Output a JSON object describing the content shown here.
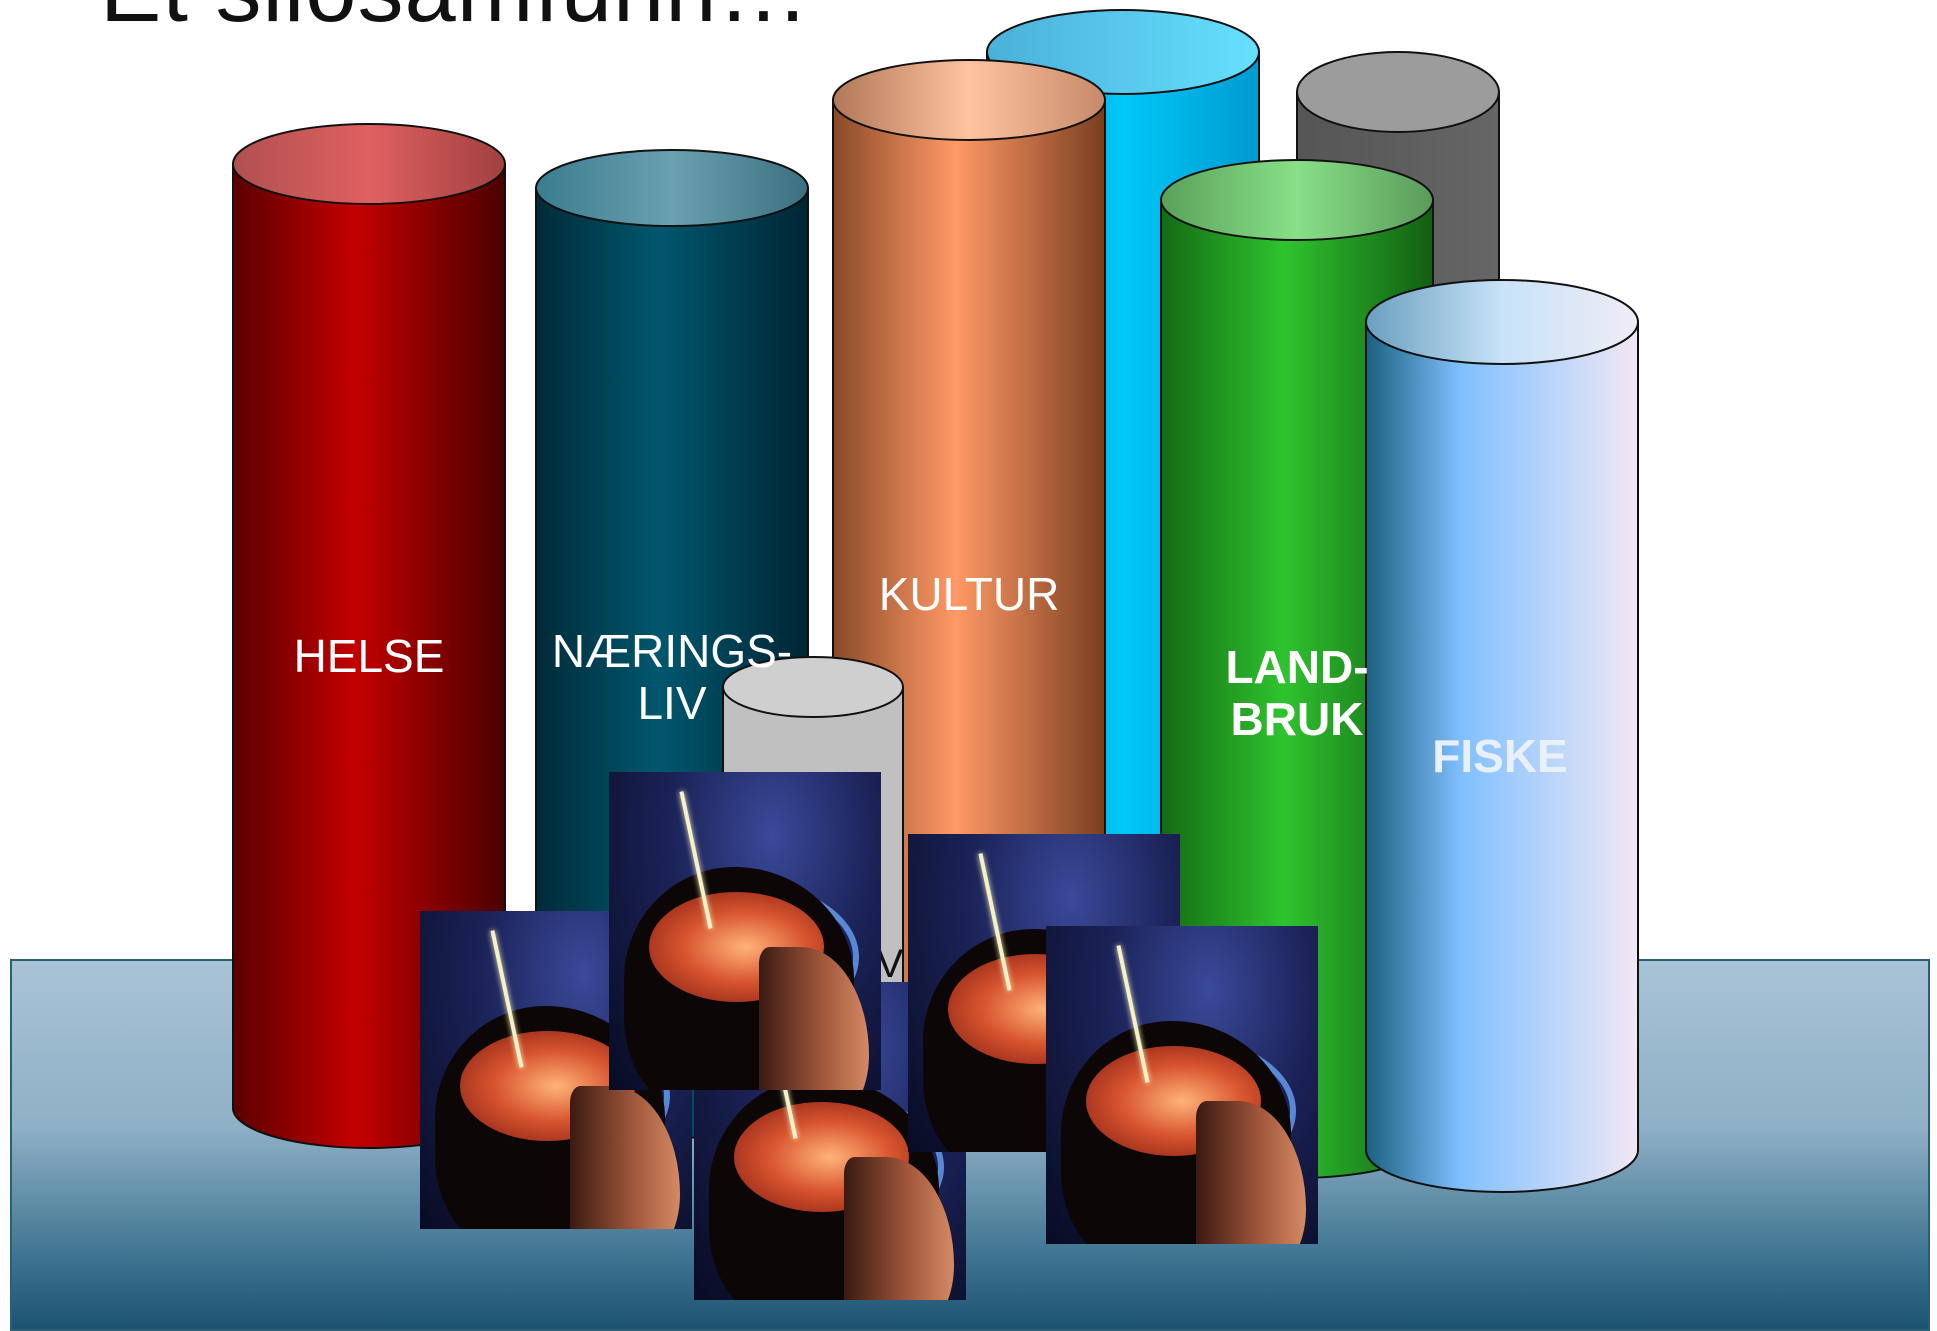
{
  "title": "Et silosamfunn…",
  "silos": [
    {
      "label": "HELSE"
    },
    {
      "label": "NÆRINGS-\nLIV"
    },
    {
      "label": "KULTUR"
    },
    {
      "label": "LAND-\nBRUK"
    },
    {
      "label": "FISKE"
    }
  ],
  "partial_label": "V",
  "colors": {
    "helse": "#c40000",
    "naeringsliv": "#00576e",
    "kultur": "#ff9966",
    "skyblue": "#00bff0",
    "grey": "#5f5f5f",
    "landbruk": "#2fc32f",
    "fiske": "#80c0ff",
    "small_grey": "#c0c0c0"
  },
  "images": [
    {
      "icon": "brain-head-image"
    },
    {
      "icon": "brain-head-image"
    },
    {
      "icon": "brain-head-image"
    },
    {
      "icon": "brain-head-image"
    },
    {
      "icon": "brain-head-image"
    }
  ]
}
